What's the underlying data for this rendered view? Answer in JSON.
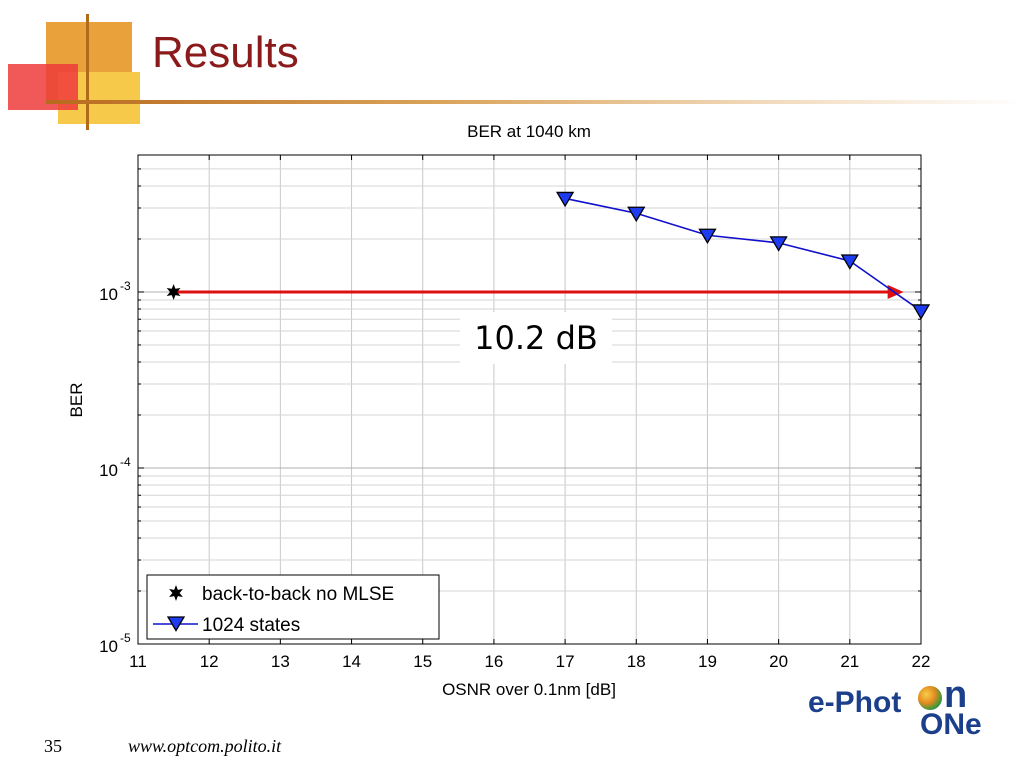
{
  "slide": {
    "title": "Results",
    "page_number": "35",
    "url": "www.optcom.polito.it",
    "logo_text": "e-Phot",
    "logo_n": "n",
    "logo_sub": "ONe"
  },
  "colors": {
    "title": "#8b1a1a",
    "series_line": "#1010cc",
    "arrow": "#dd1111",
    "deco_orange": "#e9a23b",
    "deco_red": "#ef3b3b",
    "deco_yellow": "#f6c94a"
  },
  "chart_data": {
    "type": "line",
    "title": "BER at 1040 km",
    "xlabel": "OSNR over 0.1nm [dB]",
    "ylabel": "BER",
    "xlim": [
      11,
      22
    ],
    "ylim": [
      1e-05,
      0.006
    ],
    "y_scale": "log",
    "grid": true,
    "legend_position": "bottom-left",
    "x_ticks": [
      "11",
      "12",
      "13",
      "14",
      "15",
      "16",
      "17",
      "18",
      "19",
      "20",
      "21",
      "22"
    ],
    "y_ticks": [
      {
        "value": 0.001,
        "base": "10",
        "exp": "-3"
      },
      {
        "value": 0.0001,
        "base": "10",
        "exp": "-4"
      },
      {
        "value": 1e-05,
        "base": "10",
        "exp": "-5"
      }
    ],
    "series": [
      {
        "name": "back-to-back no MLSE",
        "marker": "star",
        "x": [
          11.5
        ],
        "y": [
          0.001
        ]
      },
      {
        "name": "1024 states",
        "marker": "triangle-down",
        "x": [
          17,
          18,
          19,
          20,
          21,
          22
        ],
        "y": [
          0.0034,
          0.0028,
          0.0021,
          0.0019,
          0.0015,
          0.00078
        ]
      }
    ],
    "annotations": [
      {
        "text": "10.2 dB",
        "arrow_from": [
          11.5,
          0.001
        ],
        "arrow_to": [
          21.7,
          0.001
        ]
      }
    ]
  }
}
